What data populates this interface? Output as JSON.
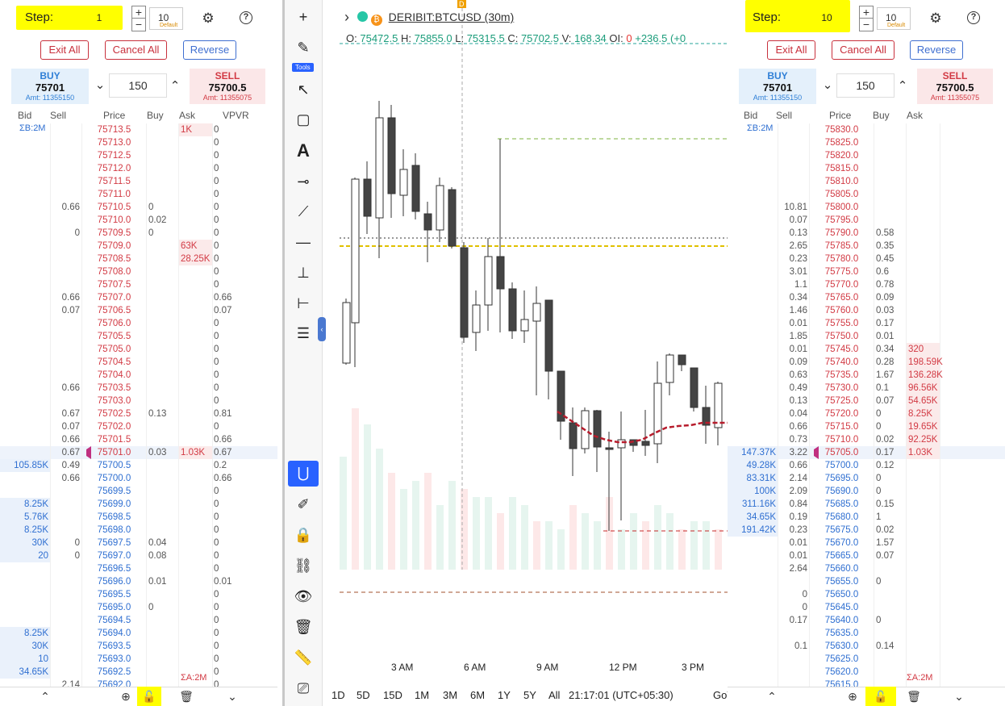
{
  "left": {
    "step_label": "Step:",
    "step_value": "1",
    "qty_value": "10",
    "qty_default": "Default",
    "exit_all": "Exit All",
    "cancel_all": "Cancel All",
    "reverse": "Reverse",
    "buy_label": "BUY",
    "buy_price": "75701",
    "buy_amt": "Amt: 11355150",
    "sell_label": "SELL",
    "sell_price": "75700.5",
    "sell_amt": "Amt: 11355075",
    "mid_qty": "150",
    "headers": {
      "bid": "Bid",
      "sell": "Sell",
      "price": "Price",
      "buy": "Buy",
      "ask": "Ask",
      "vpvr": "VPVR"
    },
    "sigma_b": "ΣB:2M",
    "sigma_a": "ΣA:2M",
    "rows": [
      {
        "bid": "",
        "sell": "",
        "price": "75713.5",
        "buy": "",
        "ask": "1K",
        "vp": "0"
      },
      {
        "bid": "",
        "sell": "",
        "price": "75713.0",
        "buy": "",
        "ask": "",
        "vp": "0"
      },
      {
        "bid": "",
        "sell": "",
        "price": "75712.5",
        "buy": "",
        "ask": "",
        "vp": "0"
      },
      {
        "bid": "",
        "sell": "",
        "price": "75712.0",
        "buy": "",
        "ask": "",
        "vp": "0"
      },
      {
        "bid": "",
        "sell": "",
        "price": "75711.5",
        "buy": "",
        "ask": "",
        "vp": "0"
      },
      {
        "bid": "",
        "sell": "",
        "price": "75711.0",
        "buy": "",
        "ask": "",
        "vp": "0"
      },
      {
        "bid": "",
        "sell": "0.66",
        "price": "75710.5",
        "buy": "0",
        "ask": "",
        "vp": "0"
      },
      {
        "bid": "",
        "sell": "",
        "price": "75710.0",
        "buy": "0.02",
        "ask": "",
        "vp": "0"
      },
      {
        "bid": "",
        "sell": "0",
        "price": "75709.5",
        "buy": "0",
        "ask": "",
        "vp": "0"
      },
      {
        "bid": "",
        "sell": "",
        "price": "75709.0",
        "buy": "",
        "ask": "63K",
        "vp": "0"
      },
      {
        "bid": "",
        "sell": "",
        "price": "75708.5",
        "buy": "",
        "ask": "28.25K",
        "vp": "0"
      },
      {
        "bid": "",
        "sell": "",
        "price": "75708.0",
        "buy": "",
        "ask": "",
        "vp": "0"
      },
      {
        "bid": "",
        "sell": "",
        "price": "75707.5",
        "buy": "",
        "ask": "",
        "vp": "0"
      },
      {
        "bid": "",
        "sell": "0.66",
        "price": "75707.0",
        "buy": "",
        "ask": "",
        "vp": "0.66"
      },
      {
        "bid": "",
        "sell": "0.07",
        "price": "75706.5",
        "buy": "",
        "ask": "",
        "vp": "0.07"
      },
      {
        "bid": "",
        "sell": "",
        "price": "75706.0",
        "buy": "",
        "ask": "",
        "vp": "0"
      },
      {
        "bid": "",
        "sell": "",
        "price": "75705.5",
        "buy": "",
        "ask": "",
        "vp": "0"
      },
      {
        "bid": "",
        "sell": "",
        "price": "75705.0",
        "buy": "",
        "ask": "",
        "vp": "0"
      },
      {
        "bid": "",
        "sell": "",
        "price": "75704.5",
        "buy": "",
        "ask": "",
        "vp": "0"
      },
      {
        "bid": "",
        "sell": "",
        "price": "75704.0",
        "buy": "",
        "ask": "",
        "vp": "0"
      },
      {
        "bid": "",
        "sell": "0.66",
        "price": "75703.5",
        "buy": "",
        "ask": "",
        "vp": "0"
      },
      {
        "bid": "",
        "sell": "",
        "price": "75703.0",
        "buy": "",
        "ask": "",
        "vp": "0"
      },
      {
        "bid": "",
        "sell": "0.67",
        "price": "75702.5",
        "buy": "0.13",
        "ask": "",
        "vp": "0.81"
      },
      {
        "bid": "",
        "sell": "0.07",
        "price": "75702.0",
        "buy": "",
        "ask": "",
        "vp": "0"
      },
      {
        "bid": "",
        "sell": "0.66",
        "price": "75701.5",
        "buy": "",
        "ask": "",
        "vp": "0.66"
      },
      {
        "bid": "",
        "sell": "0.67",
        "price": "75701.0",
        "buy": "0.03",
        "ask": "1.03K",
        "vp": "0.67",
        "cur": true
      },
      {
        "bid": "105.85K",
        "sell": "0.49",
        "price": "75700.5",
        "buy": "",
        "ask": "",
        "vp": "0.2",
        "blue": true
      },
      {
        "bid": "",
        "sell": "0.66",
        "price": "75700.0",
        "buy": "",
        "ask": "",
        "vp": "0.66",
        "blue": true
      },
      {
        "bid": "",
        "sell": "",
        "price": "75699.5",
        "buy": "",
        "ask": "",
        "vp": "0",
        "blue": true
      },
      {
        "bid": "8.25K",
        "sell": "",
        "price": "75699.0",
        "buy": "",
        "ask": "",
        "vp": "0",
        "blue": true
      },
      {
        "bid": "5.76K",
        "sell": "",
        "price": "75698.5",
        "buy": "",
        "ask": "",
        "vp": "0",
        "blue": true
      },
      {
        "bid": "8.25K",
        "sell": "",
        "price": "75698.0",
        "buy": "",
        "ask": "",
        "vp": "0",
        "blue": true
      },
      {
        "bid": "30K",
        "sell": "0",
        "price": "75697.5",
        "buy": "0.04",
        "ask": "",
        "vp": "0",
        "blue": true
      },
      {
        "bid": "20",
        "sell": "0",
        "price": "75697.0",
        "buy": "0.08",
        "ask": "",
        "vp": "0",
        "blue": true
      },
      {
        "bid": "",
        "sell": "",
        "price": "75696.5",
        "buy": "",
        "ask": "",
        "vp": "0",
        "blue": true
      },
      {
        "bid": "",
        "sell": "",
        "price": "75696.0",
        "buy": "0.01",
        "ask": "",
        "vp": "0.01",
        "blue": true
      },
      {
        "bid": "",
        "sell": "",
        "price": "75695.5",
        "buy": "",
        "ask": "",
        "vp": "0",
        "blue": true
      },
      {
        "bid": "",
        "sell": "",
        "price": "75695.0",
        "buy": "0",
        "ask": "",
        "vp": "0",
        "blue": true
      },
      {
        "bid": "",
        "sell": "",
        "price": "75694.5",
        "buy": "",
        "ask": "",
        "vp": "0",
        "blue": true
      },
      {
        "bid": "8.25K",
        "sell": "",
        "price": "75694.0",
        "buy": "",
        "ask": "",
        "vp": "0",
        "blue": true
      },
      {
        "bid": "30K",
        "sell": "",
        "price": "75693.5",
        "buy": "",
        "ask": "",
        "vp": "0",
        "blue": true
      },
      {
        "bid": "10",
        "sell": "",
        "price": "75693.0",
        "buy": "",
        "ask": "",
        "vp": "0",
        "blue": true
      },
      {
        "bid": "34.65K",
        "sell": "",
        "price": "75692.5",
        "buy": "",
        "ask": "",
        "vp": "0",
        "blue": true
      },
      {
        "bid": "",
        "sell": "2.14",
        "price": "75692.0",
        "buy": "",
        "ask": "",
        "vp": "0",
        "blue": true
      }
    ]
  },
  "right": {
    "step_label": "Step:",
    "step_value": "10",
    "qty_value": "10",
    "qty_default": "Default",
    "exit_all": "Exit All",
    "cancel_all": "Cancel All",
    "reverse": "Reverse",
    "buy_label": "BUY",
    "buy_price": "75701",
    "buy_amt": "Amt: 11355150",
    "sell_label": "SELL",
    "sell_price": "75700.5",
    "sell_amt": "Amt: 11355075",
    "mid_qty": "150",
    "headers": {
      "bid": "Bid",
      "sell": "Sell",
      "price": "Price",
      "buy": "Buy",
      "ask": "Ask"
    },
    "sigma_b": "ΣB:2M",
    "sigma_a": "ΣA:2M",
    "rows": [
      {
        "bid": "",
        "sell": "",
        "price": "75830.0",
        "buy": "",
        "ask": ""
      },
      {
        "bid": "",
        "sell": "",
        "price": "75825.0",
        "buy": "",
        "ask": ""
      },
      {
        "bid": "",
        "sell": "",
        "price": "75820.0",
        "buy": "",
        "ask": ""
      },
      {
        "bid": "",
        "sell": "",
        "price": "75815.0",
        "buy": "",
        "ask": ""
      },
      {
        "bid": "",
        "sell": "",
        "price": "75810.0",
        "buy": "",
        "ask": ""
      },
      {
        "bid": "",
        "sell": "",
        "price": "75805.0",
        "buy": "",
        "ask": ""
      },
      {
        "bid": "",
        "sell": "10.81",
        "price": "75800.0",
        "buy": "",
        "ask": ""
      },
      {
        "bid": "",
        "sell": "0.07",
        "price": "75795.0",
        "buy": "",
        "ask": ""
      },
      {
        "bid": "",
        "sell": "0.13",
        "price": "75790.0",
        "buy": "0.58",
        "ask": ""
      },
      {
        "bid": "",
        "sell": "2.65",
        "price": "75785.0",
        "buy": "0.35",
        "ask": ""
      },
      {
        "bid": "",
        "sell": "0.23",
        "price": "75780.0",
        "buy": "0.45",
        "ask": ""
      },
      {
        "bid": "",
        "sell": "3.01",
        "price": "75775.0",
        "buy": "0.6",
        "ask": ""
      },
      {
        "bid": "",
        "sell": "1.1",
        "price": "75770.0",
        "buy": "0.78",
        "ask": ""
      },
      {
        "bid": "",
        "sell": "0.34",
        "price": "75765.0",
        "buy": "0.09",
        "ask": ""
      },
      {
        "bid": "",
        "sell": "1.46",
        "price": "75760.0",
        "buy": "0.03",
        "ask": ""
      },
      {
        "bid": "",
        "sell": "0.01",
        "price": "75755.0",
        "buy": "0.17",
        "ask": ""
      },
      {
        "bid": "",
        "sell": "1.85",
        "price": "75750.0",
        "buy": "0.01",
        "ask": ""
      },
      {
        "bid": "",
        "sell": "0.01",
        "price": "75745.0",
        "buy": "0.34",
        "ask": "320"
      },
      {
        "bid": "",
        "sell": "0.09",
        "price": "75740.0",
        "buy": "0.28",
        "ask": "198.59K"
      },
      {
        "bid": "",
        "sell": "0.63",
        "price": "75735.0",
        "buy": "1.67",
        "ask": "136.28K"
      },
      {
        "bid": "",
        "sell": "0.49",
        "price": "75730.0",
        "buy": "0.1",
        "ask": "96.56K"
      },
      {
        "bid": "",
        "sell": "0.13",
        "price": "75725.0",
        "buy": "0.07",
        "ask": "54.65K"
      },
      {
        "bid": "",
        "sell": "0.04",
        "price": "75720.0",
        "buy": "0",
        "ask": "8.25K"
      },
      {
        "bid": "",
        "sell": "0.66",
        "price": "75715.0",
        "buy": "0",
        "ask": "19.65K"
      },
      {
        "bid": "",
        "sell": "0.73",
        "price": "75710.0",
        "buy": "0.02",
        "ask": "92.25K"
      },
      {
        "bid": "147.37K",
        "sell": "3.22",
        "price": "75705.0",
        "buy": "0.17",
        "ask": "1.03K",
        "cur": true
      },
      {
        "bid": "49.28K",
        "sell": "0.66",
        "price": "75700.0",
        "buy": "0.12",
        "ask": "",
        "blue": true
      },
      {
        "bid": "83.31K",
        "sell": "2.14",
        "price": "75695.0",
        "buy": "0",
        "ask": "",
        "blue": true
      },
      {
        "bid": "100K",
        "sell": "2.09",
        "price": "75690.0",
        "buy": "0",
        "ask": "",
        "blue": true
      },
      {
        "bid": "311.16K",
        "sell": "0.84",
        "price": "75685.0",
        "buy": "0.15",
        "ask": "",
        "blue": true
      },
      {
        "bid": "34.65K",
        "sell": "0.19",
        "price": "75680.0",
        "buy": "1",
        "ask": "",
        "blue": true
      },
      {
        "bid": "191.42K",
        "sell": "0.23",
        "price": "75675.0",
        "buy": "0.02",
        "ask": "",
        "blue": true
      },
      {
        "bid": "",
        "sell": "0.01",
        "price": "75670.0",
        "buy": "1.57",
        "ask": "",
        "blue": true
      },
      {
        "bid": "",
        "sell": "0.01",
        "price": "75665.0",
        "buy": "0.07",
        "ask": "",
        "blue": true
      },
      {
        "bid": "",
        "sell": "2.64",
        "price": "75660.0",
        "buy": "",
        "ask": "",
        "blue": true
      },
      {
        "bid": "",
        "sell": "",
        "price": "75655.0",
        "buy": "0",
        "ask": "",
        "blue": true
      },
      {
        "bid": "",
        "sell": "0",
        "price": "75650.0",
        "buy": "",
        "ask": "",
        "blue": true
      },
      {
        "bid": "",
        "sell": "0",
        "price": "75645.0",
        "buy": "",
        "ask": "",
        "blue": true
      },
      {
        "bid": "",
        "sell": "0.17",
        "price": "75640.0",
        "buy": "0",
        "ask": "",
        "blue": true
      },
      {
        "bid": "",
        "sell": "",
        "price": "75635.0",
        "buy": "",
        "ask": "",
        "blue": true
      },
      {
        "bid": "",
        "sell": "0.1",
        "price": "75630.0",
        "buy": "0.14",
        "ask": "",
        "blue": true
      },
      {
        "bid": "",
        "sell": "",
        "price": "75625.0",
        "buy": "",
        "ask": "",
        "blue": true
      },
      {
        "bid": "",
        "sell": "",
        "price": "75620.0",
        "buy": "",
        "ask": "",
        "blue": true
      },
      {
        "bid": "",
        "sell": "",
        "price": "75615.0",
        "buy": "",
        "ask": "",
        "blue": true
      }
    ]
  },
  "chart": {
    "symbol": "DERIBIT:BTCUSD (30m)",
    "ohlc_o_label": "O:",
    "ohlc_o": "75472.5",
    "ohlc_h_label": "H:",
    "ohlc_h": "75855.0",
    "ohlc_l_label": "L:",
    "ohlc_l": "75315.5",
    "ohlc_c_label": "C:",
    "ohlc_c": "75702.5",
    "ohlc_v_label": "V:",
    "ohlc_v": "168.34",
    "ohlc_oi_label": "OI:",
    "ohlc_oi": "0",
    "ohlc_chg": "+236.5",
    "ohlc_pct": "(+0",
    "d_marker": "D",
    "tools_label": "Tools",
    "time_labels": [
      "3 AM",
      "6 AM",
      "9 AM",
      "12 PM",
      "3 PM"
    ],
    "ranges": [
      "1D",
      "5D",
      "15D",
      "1M",
      "3M",
      "6M",
      "1Y",
      "5Y",
      "All"
    ],
    "clock": "21:17:01 (UTC+05:30)",
    "goto": "GoT",
    "colors": {
      "up": "#ffffff",
      "down": "#444444",
      "accent": "#2962ff",
      "ma": "#b71c2c"
    }
  }
}
